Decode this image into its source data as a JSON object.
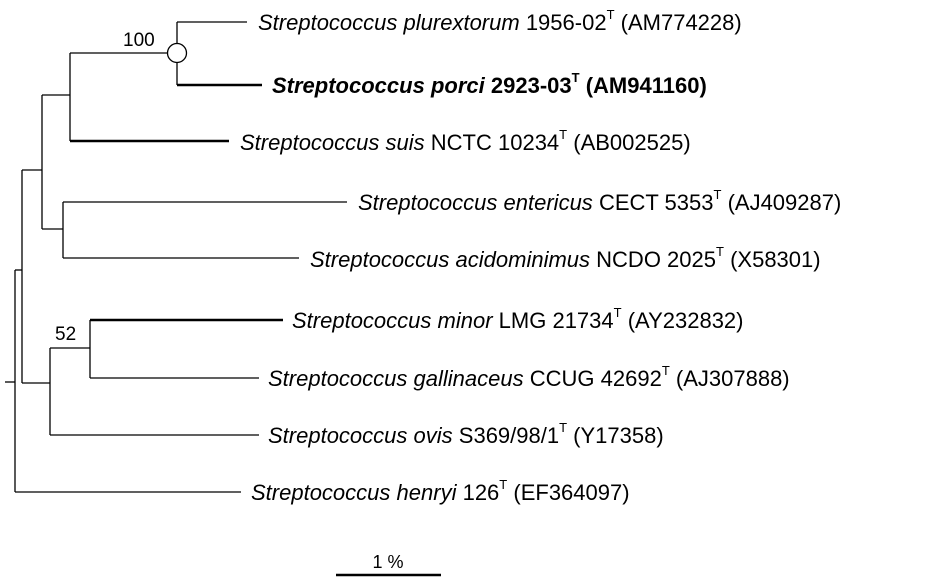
{
  "taxa": [
    {
      "genus": "Streptococcus",
      "species": "plurextorum",
      "strain": "1956-02",
      "type_mark": "T",
      "accession": "(AM774228)",
      "bold": false
    },
    {
      "genus": "Streptococcus",
      "species": "porci",
      "strain": "2923-03",
      "type_mark": "T",
      "accession": "(AM941160)",
      "bold": true
    },
    {
      "genus": "Streptococcus",
      "species": "suis",
      "strain": "NCTC 10234",
      "type_mark": "T",
      "accession": "(AB002525)",
      "bold": false
    },
    {
      "genus": "Streptococcus",
      "species": "entericus",
      "strain": "CECT 5353",
      "type_mark": "T",
      "accession": "(AJ409287)",
      "bold": false
    },
    {
      "genus": "Streptococcus",
      "species": "acidominimus",
      "strain": "NCDO 2025",
      "type_mark": "T",
      "accession": "(X58301)",
      "bold": false
    },
    {
      "genus": "Streptococcus",
      "species": "minor",
      "strain": "LMG 21734",
      "type_mark": "T",
      "accession": "(AY232832)",
      "bold": false
    },
    {
      "genus": "Streptococcus",
      "species": "gallinaceus",
      "strain": "CCUG 42692",
      "type_mark": "T",
      "accession": "(AJ307888)",
      "bold": false
    },
    {
      "genus": "Streptococcus",
      "species": "ovis",
      "strain": "S369/98/1",
      "type_mark": "T",
      "accession": "(Y17358)",
      "bold": false
    },
    {
      "genus": "Streptococcus",
      "species": "henryi",
      "strain": "126",
      "type_mark": "T",
      "accession": "(EF364097)",
      "bold": false
    }
  ],
  "support_values": [
    "100",
    "52"
  ],
  "scale_bar": {
    "label": "1 %"
  },
  "colors": {
    "line": "#000000",
    "background": "#ffffff"
  }
}
